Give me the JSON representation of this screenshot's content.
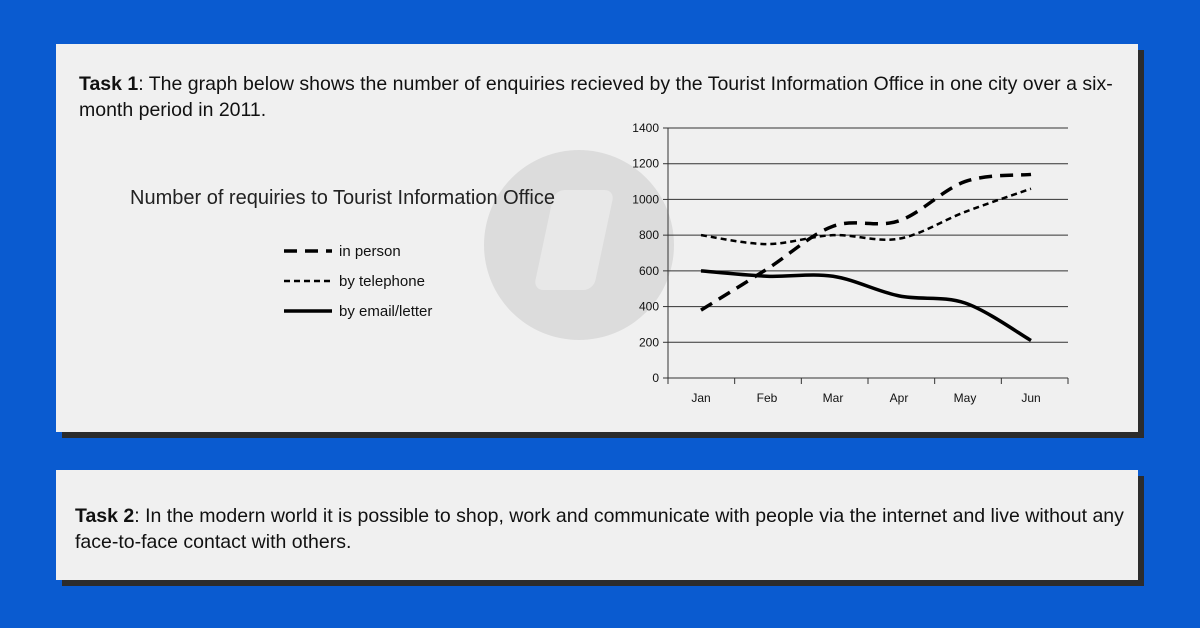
{
  "task1": {
    "label": "Task 1",
    "text": ": The graph below shows the number of enquiries recieved by the Tourist Information Office in one city over a six-month period in 2011."
  },
  "task2": {
    "label": "Task 2",
    "text": ": In the modern world it is possible to shop, work and communicate with people via the internet and live without any face-to-face contact with others."
  },
  "colors": {
    "background": "#0a5bd0",
    "card": "#f0f0f0",
    "line": "#000000"
  },
  "chart_data": {
    "type": "line",
    "title": "Number of requiries to Tourist Information Office",
    "x": [
      "Jan",
      "Feb",
      "Mar",
      "Apr",
      "May",
      "Jun"
    ],
    "ylim": [
      0,
      1400
    ],
    "yticks": [
      0,
      200,
      400,
      600,
      800,
      1000,
      1200,
      1400
    ],
    "grid": true,
    "legend_position": "left",
    "series": [
      {
        "name": "in person",
        "style": "dashed",
        "values": [
          380,
          610,
          850,
          880,
          1100,
          1140
        ]
      },
      {
        "name": "by telephone",
        "style": "dotted",
        "values": [
          800,
          750,
          800,
          780,
          930,
          1060
        ]
      },
      {
        "name": "by email/letter",
        "style": "solid",
        "values": [
          600,
          570,
          570,
          460,
          420,
          210
        ]
      }
    ]
  }
}
